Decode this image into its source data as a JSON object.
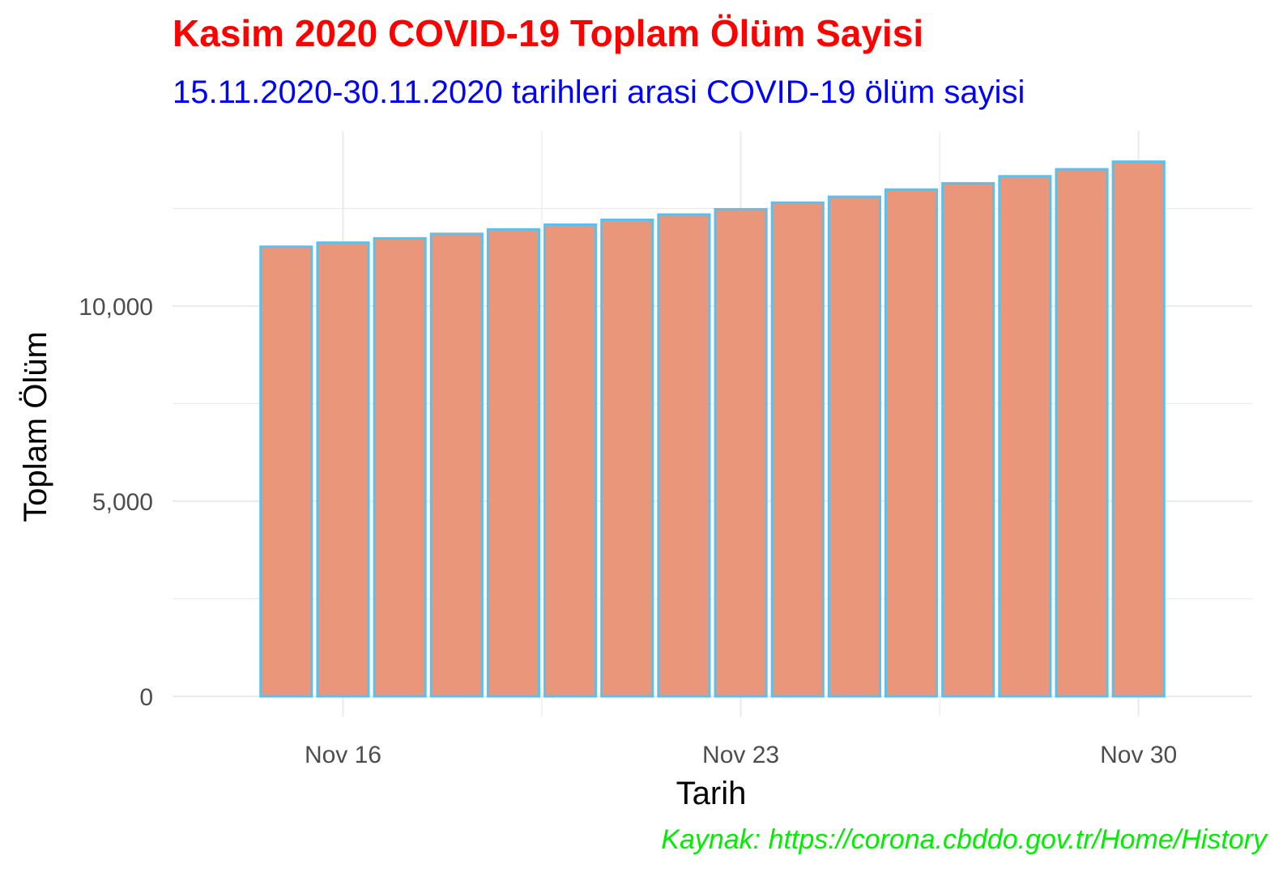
{
  "chart_data": {
    "type": "bar",
    "title": "Kasim 2020 COVID-19 Toplam Ölüm Sayisi",
    "subtitle": "15.11.2020-30.11.2020 tarihleri arasi COVID-19 ölüm sayisi",
    "caption": "Kaynak: https://corona.cbddo.gov.tr/Home/History",
    "xlabel": "Tarih",
    "ylabel": "Toplam Ölüm",
    "x_ticks": [
      {
        "date": "2020-11-16",
        "label": "Nov 16"
      },
      {
        "date": "2020-11-23",
        "label": "Nov 23"
      },
      {
        "date": "2020-11-30",
        "label": "Nov 30"
      }
    ],
    "y_ticks": [
      {
        "value": 0,
        "label": "0"
      },
      {
        "value": 5000,
        "label": "5,000"
      },
      {
        "value": 10000,
        "label": "10,000"
      }
    ],
    "ylim": [
      0,
      14500
    ],
    "xlim": [
      "2020-11-13",
      "2020-12-02"
    ],
    "categories": [
      "2020-11-15",
      "2020-11-16",
      "2020-11-17",
      "2020-11-18",
      "2020-11-19",
      "2020-11-20",
      "2020-11-21",
      "2020-11-22",
      "2020-11-23",
      "2020-11-24",
      "2020-11-25",
      "2020-11-26",
      "2020-11-27",
      "2020-11-28",
      "2020-11-29",
      "2020-11-30"
    ],
    "values": [
      11520,
      11625,
      11735,
      11850,
      11965,
      12085,
      12210,
      12345,
      12480,
      12650,
      12800,
      12985,
      13145,
      13325,
      13505,
      13700
    ],
    "grid": true,
    "legend": "none",
    "colors": {
      "bar_fill": "#e9967a",
      "bar_outline": "#5bc0eb",
      "grid": "#ebebeb"
    }
  }
}
